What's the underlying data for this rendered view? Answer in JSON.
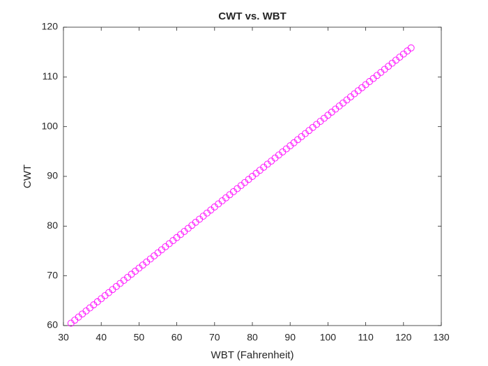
{
  "chart_data": {
    "type": "scatter",
    "title": "CWT vs. WBT",
    "x_label": "WBT (Fahrenheit)",
    "y_label": "CWT",
    "series": [
      {
        "color": "#ff00ff",
        "marker": "circle",
        "x": [
          32,
          33,
          34,
          35,
          36,
          37,
          38,
          39,
          40,
          41,
          42,
          43,
          44,
          45,
          46,
          47,
          48,
          49,
          50,
          51,
          52,
          53,
          54,
          55,
          56,
          57,
          58,
          59,
          60,
          61,
          62,
          63,
          64,
          65,
          66,
          67,
          68,
          69,
          70,
          71,
          72,
          73,
          74,
          75,
          76,
          77,
          78,
          79,
          80,
          81,
          82,
          83,
          84,
          85,
          86,
          87,
          88,
          89,
          90,
          91,
          92,
          93,
          94,
          95,
          96,
          97,
          98,
          99,
          100,
          101,
          102,
          103,
          104,
          105,
          106,
          107,
          108,
          109,
          110,
          111,
          112,
          113,
          114,
          115,
          116,
          117,
          118,
          119,
          120,
          121,
          122
        ],
        "values": [
          60.48,
          61.095,
          61.71,
          62.325,
          62.94,
          63.555,
          64.17,
          64.785,
          65.4,
          66.015,
          66.63,
          67.245,
          67.86,
          68.475,
          69.09,
          69.705,
          70.32,
          70.935,
          71.55,
          72.165,
          72.78,
          73.395,
          74.01,
          74.625,
          75.24,
          75.855,
          76.47,
          77.085,
          77.7,
          78.315,
          78.93,
          79.545,
          80.16,
          80.775,
          81.39,
          82.005,
          82.62,
          83.235,
          83.85,
          84.465,
          85.08,
          85.695,
          86.31,
          86.925,
          87.54,
          88.155,
          88.77,
          89.385,
          90.0,
          90.615,
          91.23,
          91.845,
          92.46,
          93.075,
          93.69,
          94.305,
          94.92,
          95.535,
          96.15,
          96.765,
          97.38,
          97.995,
          98.61,
          99.225,
          99.84,
          100.455,
          101.07,
          101.685,
          102.3,
          102.915,
          103.53,
          104.145,
          104.76,
          105.375,
          105.99,
          106.605,
          107.22,
          107.835,
          108.45,
          109.065,
          109.68,
          110.295,
          110.91,
          111.525,
          112.14,
          112.755,
          113.37,
          113.985,
          114.6,
          115.215,
          115.83
        ]
      }
    ],
    "xlim": [
      30,
      130
    ],
    "xticks": [
      30,
      40,
      50,
      60,
      70,
      80,
      90,
      100,
      110,
      120,
      130
    ],
    "ylim": [
      60,
      120
    ],
    "yticks": [
      60,
      70,
      80,
      90,
      100,
      110,
      120
    ],
    "grid": false
  }
}
